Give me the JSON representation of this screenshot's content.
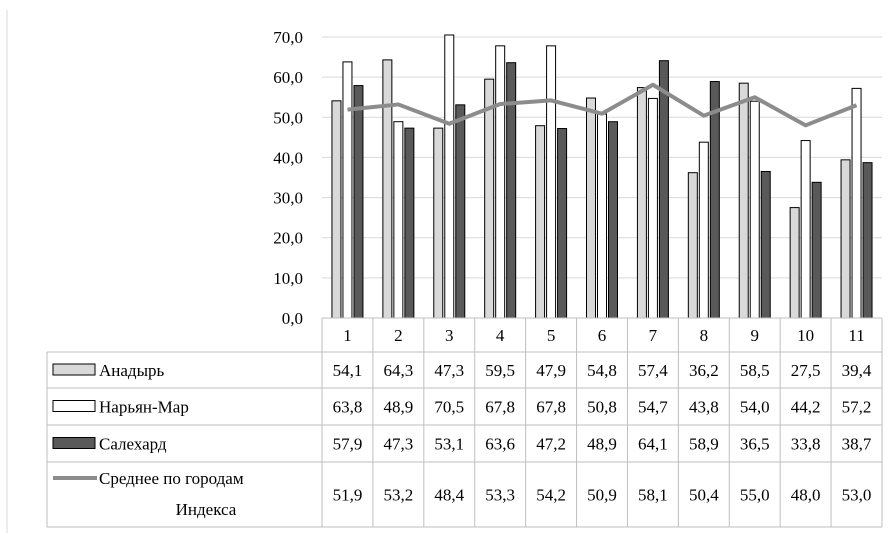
{
  "chart_data": {
    "type": "bar",
    "title": "",
    "xlabel": "",
    "ylabel": "",
    "ylim": [
      0,
      70
    ],
    "yticks": [
      "0,0",
      "10,0",
      "20,0",
      "30,0",
      "40,0",
      "50,0",
      "60,0",
      "70,0"
    ],
    "categories": [
      "1",
      "2",
      "3",
      "4",
      "5",
      "6",
      "7",
      "8",
      "9",
      "10",
      "11"
    ],
    "grid": true,
    "legend": "data-table",
    "series": [
      {
        "name": "Анадырь",
        "kind": "bar",
        "color": "#d9d9d9",
        "values": [
          54.1,
          64.3,
          47.3,
          59.5,
          47.9,
          54.8,
          57.4,
          36.2,
          58.5,
          27.5,
          39.4
        ],
        "labels": [
          "54,1",
          "64,3",
          "47,3",
          "59,5",
          "47,9",
          "54,8",
          "57,4",
          "36,2",
          "58,5",
          "27,5",
          "39,4"
        ]
      },
      {
        "name": "Нарьян-Мар",
        "kind": "bar",
        "color": "#ffffff",
        "values": [
          63.8,
          48.9,
          70.5,
          67.8,
          67.8,
          50.8,
          54.7,
          43.8,
          54.0,
          44.2,
          57.2
        ],
        "labels": [
          "63,8",
          "48,9",
          "70,5",
          "67,8",
          "67,8",
          "50,8",
          "54,7",
          "43,8",
          "54,0",
          "44,2",
          "57,2"
        ]
      },
      {
        "name": "Салехард",
        "kind": "bar",
        "color": "#595959",
        "values": [
          57.9,
          47.3,
          53.1,
          63.6,
          47.2,
          48.9,
          64.1,
          58.9,
          36.5,
          33.8,
          38.7
        ],
        "labels": [
          "57,9",
          "47,3",
          "53,1",
          "63,6",
          "47,2",
          "48,9",
          "64,1",
          "58,9",
          "36,5",
          "33,8",
          "38,7"
        ]
      },
      {
        "name": "Среднее по городам",
        "name_line2": "Индекса",
        "kind": "line",
        "color": "#8c8c8c",
        "values": [
          51.9,
          53.2,
          48.4,
          53.3,
          54.2,
          50.9,
          58.1,
          50.4,
          55.0,
          48.0,
          53.0
        ],
        "labels": [
          "51,9",
          "53,2",
          "48,4",
          "53,3",
          "54,2",
          "50,9",
          "58,1",
          "50,4",
          "55,0",
          "48,0",
          "53,0"
        ]
      }
    ]
  }
}
